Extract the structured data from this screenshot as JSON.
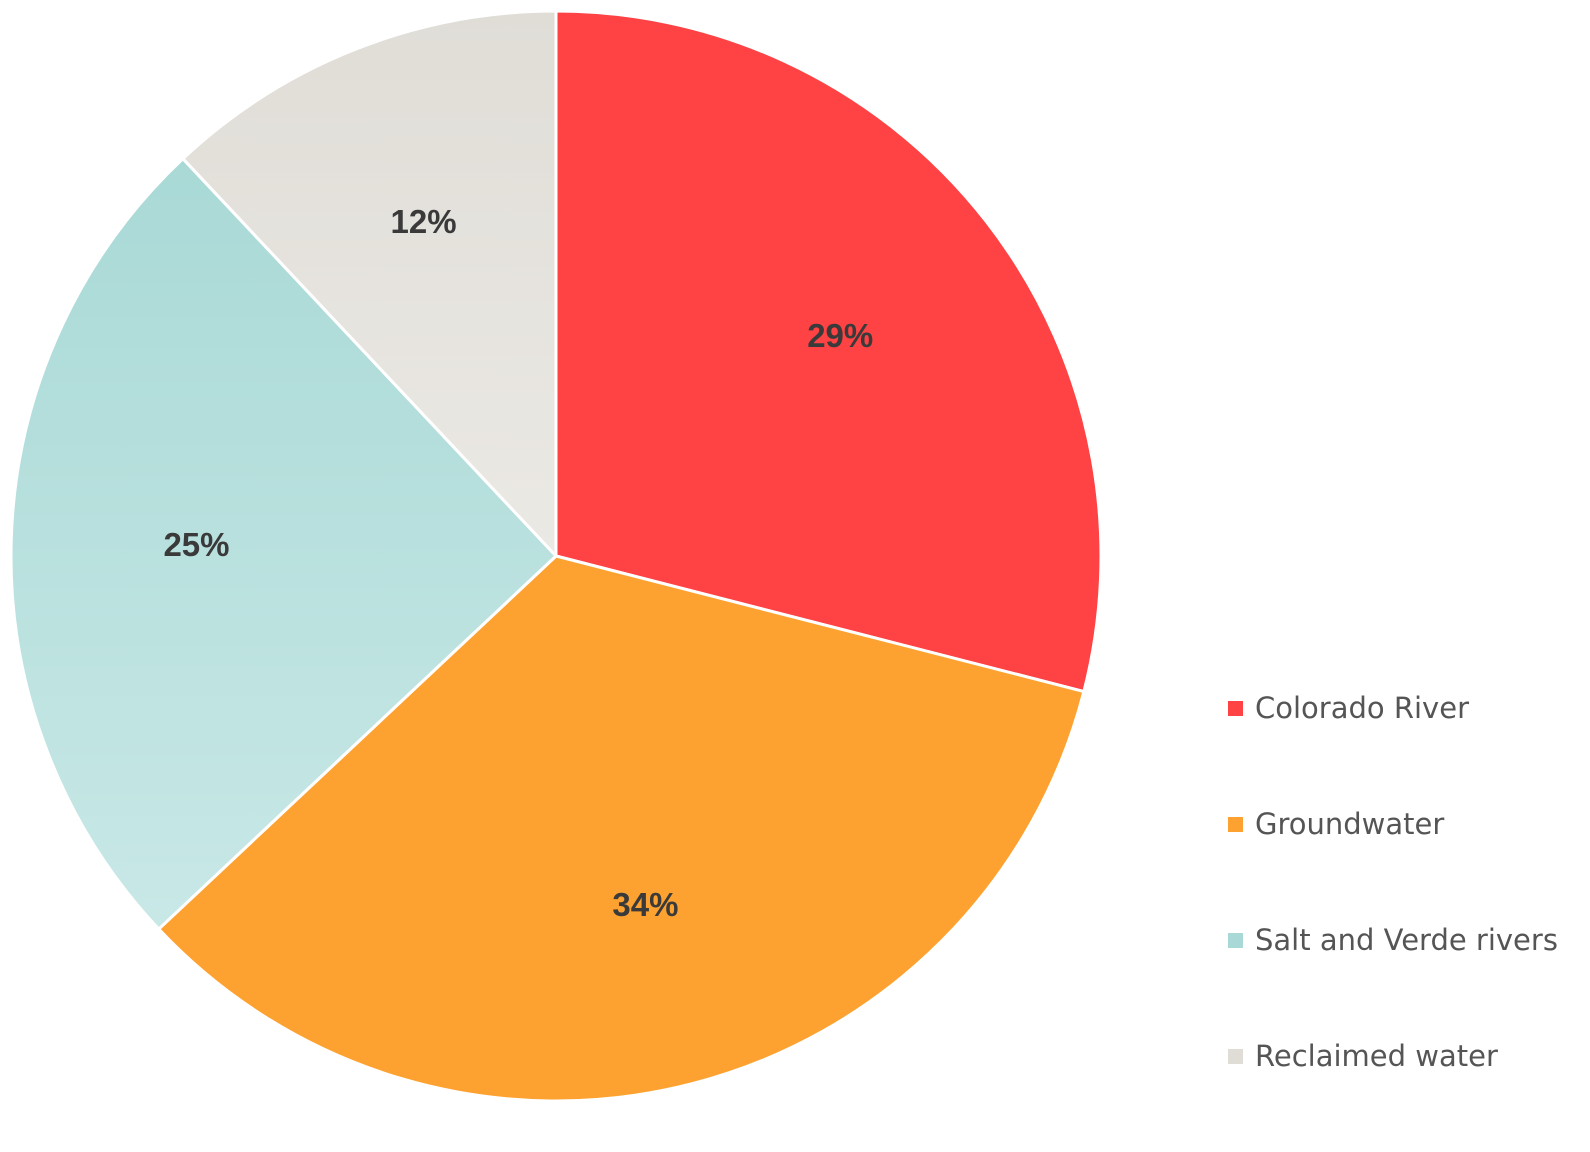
{
  "chart_data": {
    "type": "pie",
    "title": "",
    "start_angle_deg": 0,
    "direction": "clockwise",
    "legend_position": "bottom-right",
    "slices": [
      {
        "label": "Colorado River",
        "value": 29,
        "display": "29%",
        "color": "#ff4244",
        "color_end": "#ff4244"
      },
      {
        "label": "Groundwater",
        "value": 34,
        "display": "34%",
        "color": "#fda230",
        "color_end": "#fda230"
      },
      {
        "label": "Salt and Verde rivers",
        "value": 25,
        "display": "25%",
        "color": "#a9d9d6",
        "color_end": "#c8e8e6"
      },
      {
        "label": "Reclaimed water",
        "value": 12,
        "display": "12%",
        "color": "#e0ddd7",
        "color_end": "#ebe9e4"
      }
    ]
  }
}
